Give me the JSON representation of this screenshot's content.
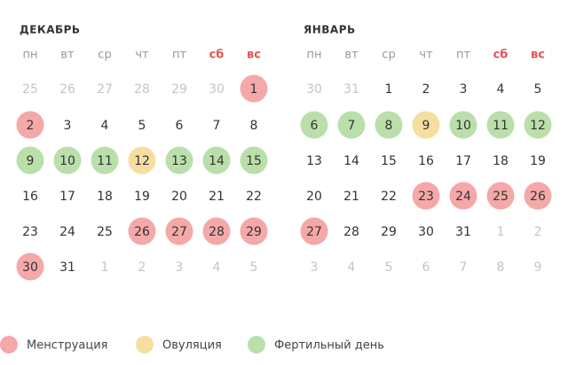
{
  "colors": {
    "m": "#f5a8a8",
    "o": "#f6dea0",
    "f": "#badfaa",
    "text": "#333333",
    "muted": "#c4c4c4",
    "weekday": "#999999",
    "weekend": "#e05555"
  },
  "months": [
    {
      "title": "ДЕКАБРЬ",
      "weekdays": [
        {
          "label": "пн",
          "weekend": false
        },
        {
          "label": "вт",
          "weekend": false
        },
        {
          "label": "ср",
          "weekend": false
        },
        {
          "label": "чт",
          "weekend": false
        },
        {
          "label": "пт",
          "weekend": false
        },
        {
          "label": "сб",
          "weekend": true
        },
        {
          "label": "вс",
          "weekend": true
        }
      ],
      "weeks": [
        [
          25,
          26,
          27,
          28,
          29,
          30,
          1
        ],
        [
          2,
          3,
          4,
          5,
          6,
          7,
          8
        ],
        [
          9,
          10,
          11,
          12,
          13,
          14,
          15
        ],
        [
          16,
          17,
          18,
          19,
          20,
          21,
          22
        ],
        [
          23,
          24,
          25,
          26,
          27,
          28,
          29
        ],
        [
          30,
          31,
          1,
          2,
          3,
          4,
          5
        ]
      ],
      "states": [
        [
          "x",
          "x",
          "x",
          "x",
          "x",
          "x",
          "m"
        ],
        [
          "m",
          "n",
          "n",
          "n",
          "n",
          "n",
          "n"
        ],
        [
          "f",
          "f",
          "f",
          "o",
          "f",
          "f",
          "f"
        ],
        [
          "n",
          "n",
          "n",
          "n",
          "n",
          "n",
          "n"
        ],
        [
          "n",
          "n",
          "n",
          "m",
          "m",
          "m",
          "m"
        ],
        [
          "m",
          "n",
          "x",
          "x",
          "x",
          "x",
          "x"
        ]
      ]
    },
    {
      "title": "ЯНВАРЬ",
      "weekdays": [
        {
          "label": "пн",
          "weekend": false
        },
        {
          "label": "вт",
          "weekend": false
        },
        {
          "label": "ср",
          "weekend": false
        },
        {
          "label": "чт",
          "weekend": false
        },
        {
          "label": "пт",
          "weekend": false
        },
        {
          "label": "сб",
          "weekend": true
        },
        {
          "label": "вс",
          "weekend": true
        }
      ],
      "weeks": [
        [
          30,
          31,
          1,
          2,
          3,
          4,
          5
        ],
        [
          6,
          7,
          8,
          9,
          10,
          11,
          12
        ],
        [
          13,
          14,
          15,
          16,
          17,
          18,
          19
        ],
        [
          20,
          21,
          22,
          23,
          24,
          25,
          26
        ],
        [
          27,
          28,
          29,
          30,
          31,
          1,
          2
        ],
        [
          3,
          4,
          5,
          6,
          7,
          8,
          9
        ]
      ],
      "states": [
        [
          "x",
          "x",
          "n",
          "n",
          "n",
          "n",
          "n"
        ],
        [
          "f",
          "f",
          "f",
          "o",
          "f",
          "f",
          "f"
        ],
        [
          "n",
          "n",
          "n",
          "n",
          "n",
          "n",
          "n"
        ],
        [
          "n",
          "n",
          "n",
          "m",
          "m",
          "m",
          "m"
        ],
        [
          "m",
          "n",
          "n",
          "n",
          "n",
          "x",
          "x"
        ],
        [
          "x",
          "x",
          "x",
          "x",
          "x",
          "x",
          "x"
        ]
      ]
    }
  ],
  "legend": [
    {
      "label": "Менструация",
      "state": "m"
    },
    {
      "label": "Овуляция",
      "state": "o"
    },
    {
      "label": "Фертильный день",
      "state": "f"
    }
  ]
}
